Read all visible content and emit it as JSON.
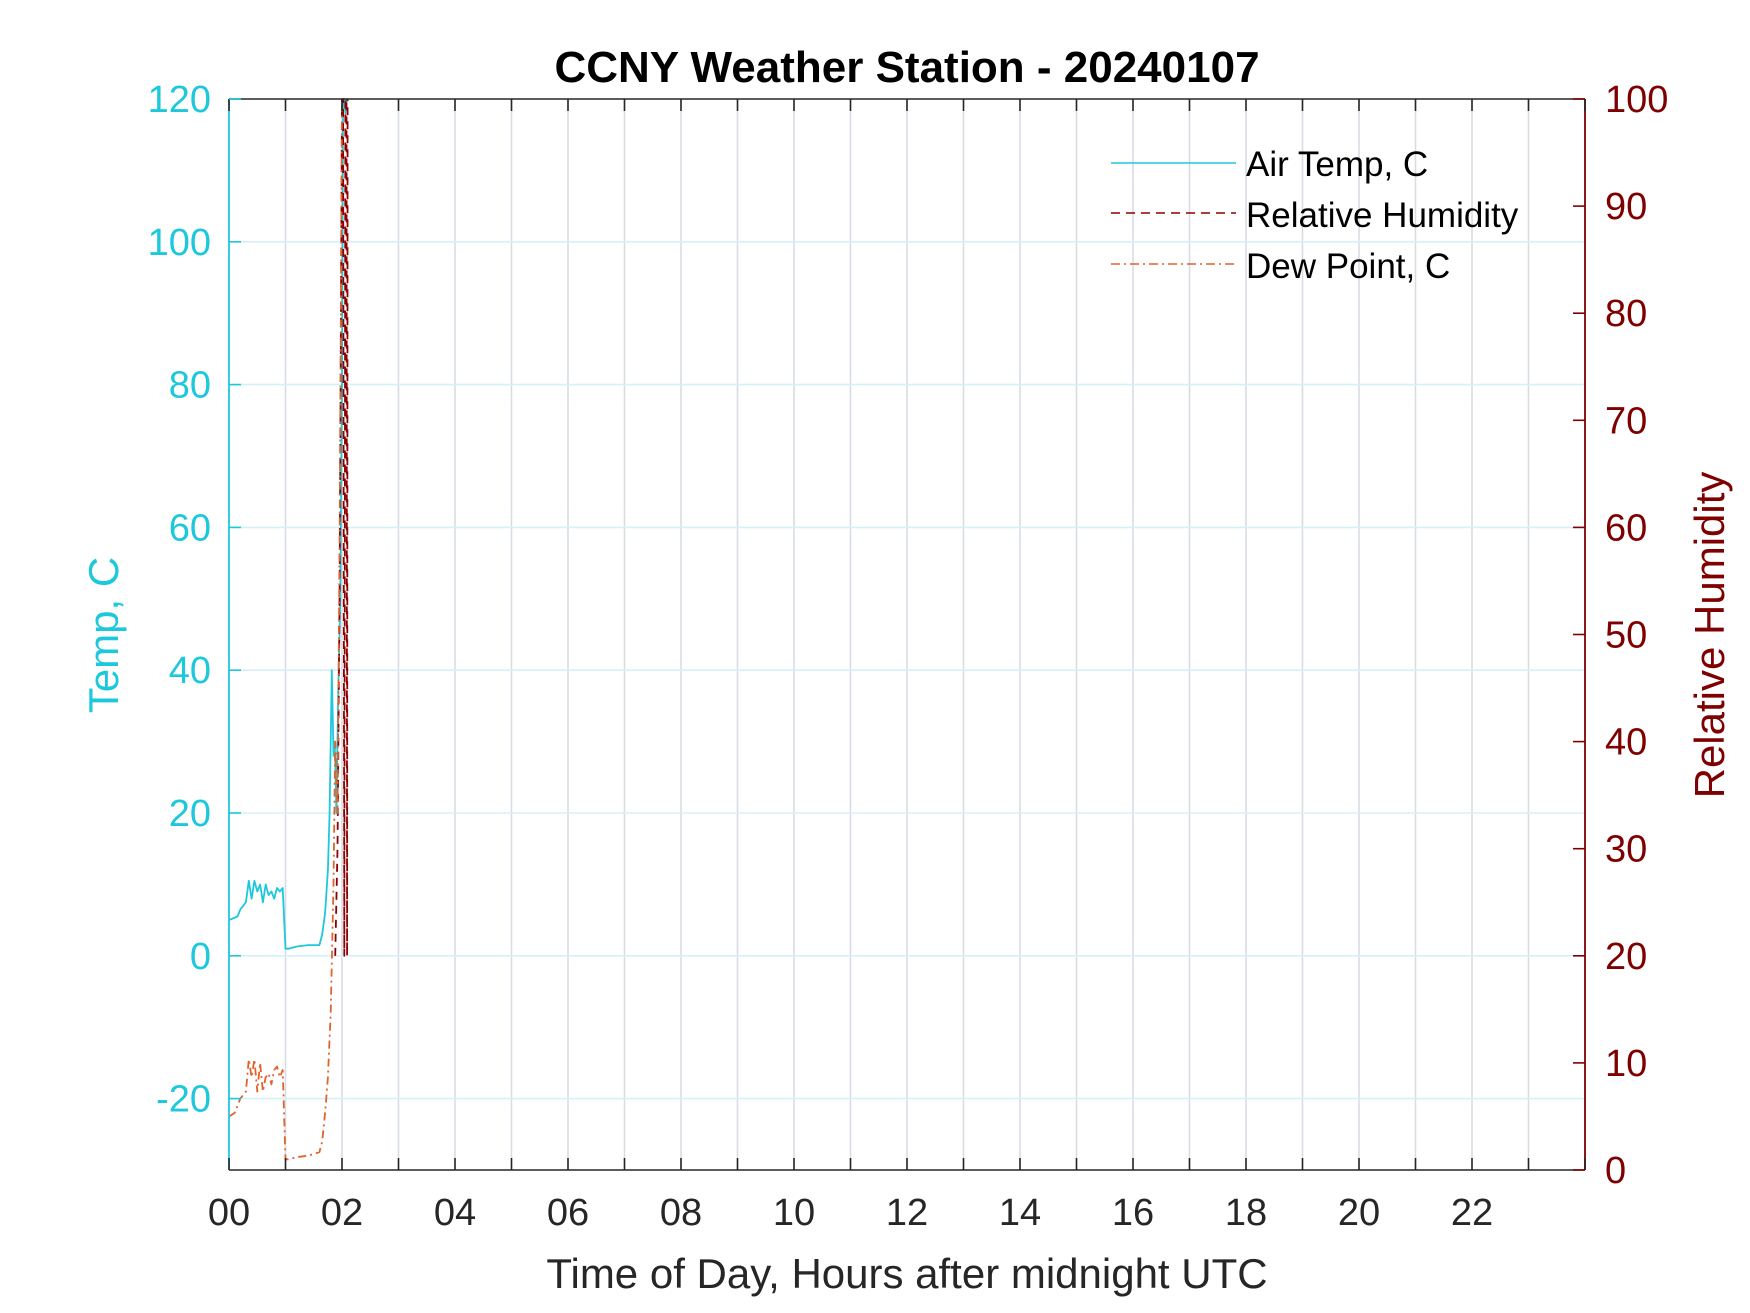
{
  "chart_data": {
    "type": "line",
    "title": "CCNY Weather Station - 20240107",
    "xlabel": "Time of Day, Hours after midnight UTC",
    "ylabel_left": "Temp, C",
    "ylabel_right": "Relative Humidity",
    "xlim": [
      0,
      24
    ],
    "ylim_left": [
      -30,
      120
    ],
    "ylim_right": [
      0,
      100
    ],
    "x_ticks": [
      0,
      2,
      4,
      6,
      8,
      10,
      12,
      14,
      16,
      18,
      20,
      22
    ],
    "x_tick_labels": [
      "00",
      "02",
      "04",
      "06",
      "08",
      "10",
      "12",
      "14",
      "16",
      "18",
      "20",
      "22"
    ],
    "y_left_ticks": [
      -20,
      0,
      20,
      40,
      60,
      80,
      100,
      120
    ],
    "y_left_tick_labels": [
      "-20",
      "0",
      "20",
      "40",
      "60",
      "80",
      "100",
      "120"
    ],
    "y_right_ticks": [
      0,
      10,
      20,
      30,
      40,
      50,
      60,
      70,
      80,
      90,
      100
    ],
    "y_right_tick_labels": [
      "0",
      "10",
      "20",
      "30",
      "40",
      "50",
      "60",
      "70",
      "80",
      "90",
      "100"
    ],
    "grid": true,
    "legend_position": "top-right",
    "colors": {
      "air_temp": "#1ec8dc",
      "relative_humidity": "#8b0000",
      "dew_point": "#e0622c",
      "left_axis": "#1ec8dc",
      "right_axis": "#7f0000",
      "grid_x": "#d8dde4",
      "grid_y": "#d5f0f8"
    },
    "series": [
      {
        "name": "Air Temp, C",
        "axis": "left",
        "style": "solid",
        "x": [
          0.0,
          0.15,
          0.2,
          0.3,
          0.35,
          0.4,
          0.45,
          0.5,
          0.55,
          0.6,
          0.65,
          0.7,
          0.75,
          0.8,
          0.85,
          0.9,
          0.95,
          1.0,
          1.05,
          1.2,
          1.4,
          1.6,
          1.65,
          1.7,
          1.75,
          1.78,
          1.82,
          1.85,
          1.87,
          1.9,
          1.93,
          1.97,
          2.0,
          2.02,
          2.04,
          2.06,
          2.08,
          2.1
        ],
        "y": [
          5,
          5.5,
          6.5,
          7.5,
          10.5,
          8,
          10.5,
          9,
          10,
          7.5,
          10,
          8.5,
          9,
          8,
          9.5,
          9,
          9.5,
          1,
          1,
          1.3,
          1.5,
          1.5,
          3,
          6,
          12,
          20,
          40,
          28,
          30,
          20,
          35,
          50,
          80,
          120,
          120,
          118,
          120,
          120
        ]
      },
      {
        "name": "Relative Humidity",
        "axis": "right",
        "style": "dashed",
        "x": [
          1.88,
          1.92,
          1.96,
          2.0,
          2.02,
          2.04,
          2.06,
          2.08,
          2.09,
          2.1
        ],
        "y": [
          20,
          30,
          55,
          100,
          100,
          20,
          100,
          100,
          20,
          100
        ]
      },
      {
        "name": "Dew Point, C",
        "axis": "left",
        "style": "dashdot",
        "x": [
          0.0,
          0.1,
          0.2,
          0.3,
          0.35,
          0.4,
          0.45,
          0.5,
          0.55,
          0.6,
          0.65,
          0.7,
          0.75,
          0.8,
          0.85,
          0.9,
          0.95,
          1.0,
          1.05,
          1.2,
          1.4,
          1.6,
          1.65,
          1.7,
          1.75,
          1.8,
          1.85,
          1.88,
          1.92,
          1.96,
          2.0,
          2.03,
          2.06,
          2.1
        ],
        "y": [
          -22.5,
          -22,
          -20,
          -19,
          -14.5,
          -17,
          -14.5,
          -19,
          -15,
          -19,
          -17,
          -16.5,
          -18,
          -16,
          -15.5,
          -17,
          -16,
          -28.5,
          -28.5,
          -28.2,
          -28,
          -27.5,
          -26,
          -22,
          -17,
          -8,
          10,
          30,
          20,
          60,
          120,
          120,
          120,
          120
        ]
      }
    ]
  }
}
